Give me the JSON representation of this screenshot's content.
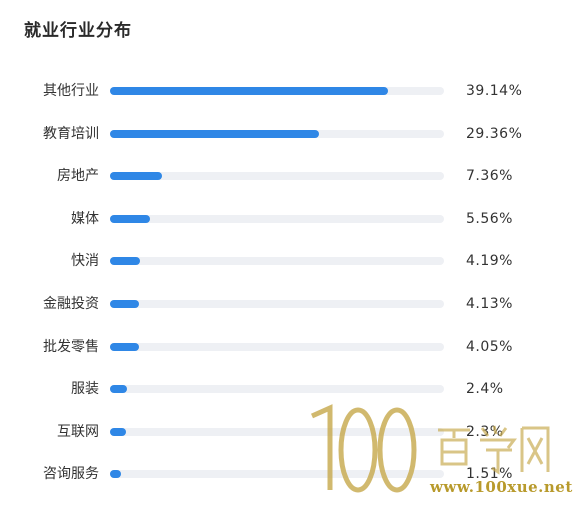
{
  "title": "就业行业分布",
  "chart_data": {
    "type": "bar",
    "orientation": "horizontal",
    "title": "就业行业分布",
    "categories": [
      "其他行业",
      "教育培训",
      "房地产",
      "媒体",
      "快消",
      "金融投资",
      "批发零售",
      "服装",
      "互联网",
      "咨询服务"
    ],
    "values": [
      39.14,
      29.36,
      7.36,
      5.56,
      4.19,
      4.13,
      4.05,
      2.4,
      2.3,
      1.51
    ],
    "value_labels": [
      "39.14%",
      "29.36%",
      "7.36%",
      "5.56%",
      "4.19%",
      "4.13%",
      "4.05%",
      "2.4%",
      "2.3%",
      "1.51%"
    ],
    "xlim": [
      0,
      47
    ],
    "grid": false,
    "legend": "none"
  },
  "colors": {
    "bar": "#2f87e6",
    "track": "#eef0f4",
    "text": "#333333"
  },
  "watermark": {
    "logo": "100百学网",
    "url": "www.100xue.net"
  }
}
